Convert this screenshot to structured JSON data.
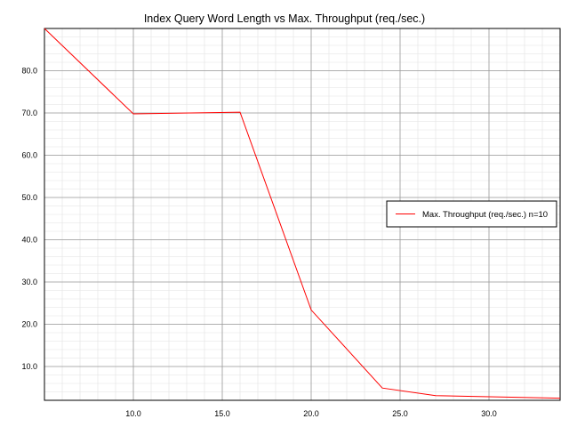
{
  "chart_data": {
    "type": "line",
    "title": "Index Query Word Length vs Max. Throughput (req./sec.)",
    "xlabel": "",
    "ylabel": "",
    "xlim": [
      5,
      34
    ],
    "ylim": [
      2,
      90
    ],
    "x_ticks": [
      10,
      15,
      20,
      25,
      30
    ],
    "x_tick_labels": [
      "10.0",
      "15.0",
      "20.0",
      "25.0",
      "30.0"
    ],
    "y_ticks": [
      10,
      20,
      30,
      40,
      50,
      60,
      70,
      80
    ],
    "y_tick_labels": [
      "10.0",
      "20.0",
      "30.0",
      "40.0",
      "50.0",
      "60.0",
      "70.0",
      "80.0"
    ],
    "grid": true,
    "legend_position": "right",
    "series": [
      {
        "name": "Max. Throughput (req./sec.) n=10",
        "color": "#ff0000",
        "x": [
          5,
          10,
          16,
          20,
          24,
          27,
          34
        ],
        "y": [
          90,
          69.8,
          70.2,
          23.4,
          4.9,
          3.1,
          2.5
        ]
      }
    ]
  }
}
